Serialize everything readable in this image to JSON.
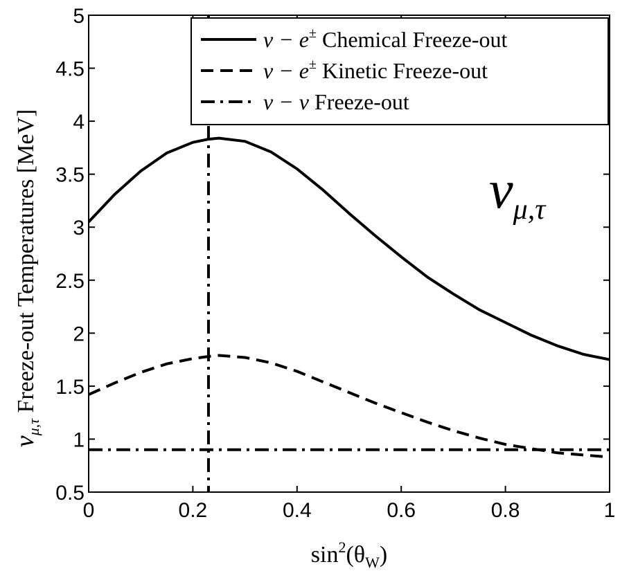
{
  "chart_data": {
    "type": "line",
    "title": "",
    "xlabel": "sin²(θ_W)",
    "xlabel_parts": {
      "base": "sin",
      "sup": "2",
      "open": "(θ",
      "sub": "W",
      "close": ")"
    },
    "ylabel": "ν_μ,τ  Freeze-out  Temperatures [MeV]",
    "ylabel_parts": {
      "sym": "ν",
      "sub": "μ,τ",
      "rest": "  Freeze-out  Temperatures [MeV]"
    },
    "xlim": [
      0,
      1
    ],
    "ylim": [
      0.5,
      5
    ],
    "xticks": [
      0,
      0.2,
      0.4,
      0.6,
      0.8,
      1
    ],
    "xtick_labels": [
      "0",
      "0.2",
      "0.4",
      "0.6",
      "0.8",
      "1"
    ],
    "yticks": [
      0.5,
      1,
      1.5,
      2,
      2.5,
      3,
      3.5,
      4,
      4.5,
      5
    ],
    "ytick_labels": [
      "0.5",
      "1",
      "1.5",
      "2",
      "2.5",
      "3",
      "3.5",
      "4",
      "4.5",
      "5"
    ],
    "grid": false,
    "legend_position": "top-right",
    "annotation": {
      "sym": "ν",
      "sub": "μ,τ"
    },
    "series": [
      {
        "name": "ν − e± Chemical Freeze-out",
        "legend_parts": {
          "math": "ν − e",
          "sup": "±",
          "text": " Chemical Freeze-out"
        },
        "style": "solid",
        "x": [
          0,
          0.05,
          0.1,
          0.15,
          0.2,
          0.23,
          0.25,
          0.3,
          0.35,
          0.4,
          0.45,
          0.5,
          0.55,
          0.6,
          0.65,
          0.7,
          0.75,
          0.8,
          0.85,
          0.9,
          0.95,
          1.0
        ],
        "y": [
          3.05,
          3.31,
          3.53,
          3.7,
          3.8,
          3.83,
          3.84,
          3.81,
          3.71,
          3.55,
          3.35,
          3.13,
          2.92,
          2.72,
          2.53,
          2.37,
          2.22,
          2.1,
          1.98,
          1.88,
          1.8,
          1.75
        ]
      },
      {
        "name": "ν − e± Kinetic Freeze-out",
        "legend_parts": {
          "math": "ν − e",
          "sup": "±",
          "text": " Kinetic Freeze-out"
        },
        "style": "dashed",
        "x": [
          0,
          0.05,
          0.1,
          0.15,
          0.2,
          0.23,
          0.25,
          0.3,
          0.35,
          0.4,
          0.45,
          0.5,
          0.55,
          0.6,
          0.65,
          0.7,
          0.75,
          0.8,
          0.85,
          0.9,
          0.95,
          1.0
        ],
        "y": [
          1.42,
          1.53,
          1.63,
          1.71,
          1.76,
          1.78,
          1.79,
          1.77,
          1.72,
          1.64,
          1.54,
          1.44,
          1.34,
          1.25,
          1.16,
          1.08,
          1.01,
          0.95,
          0.91,
          0.87,
          0.85,
          0.83
        ]
      },
      {
        "name": "ν − ν Freeze-out",
        "legend_parts": {
          "math": "ν − ν",
          "sup": "",
          "text": " Freeze-out"
        },
        "style": "dashdot",
        "x": [
          0,
          1
        ],
        "y": [
          0.9,
          0.9
        ]
      }
    ],
    "vertical_marker": {
      "x": 0.23,
      "style": "dashdot"
    }
  }
}
